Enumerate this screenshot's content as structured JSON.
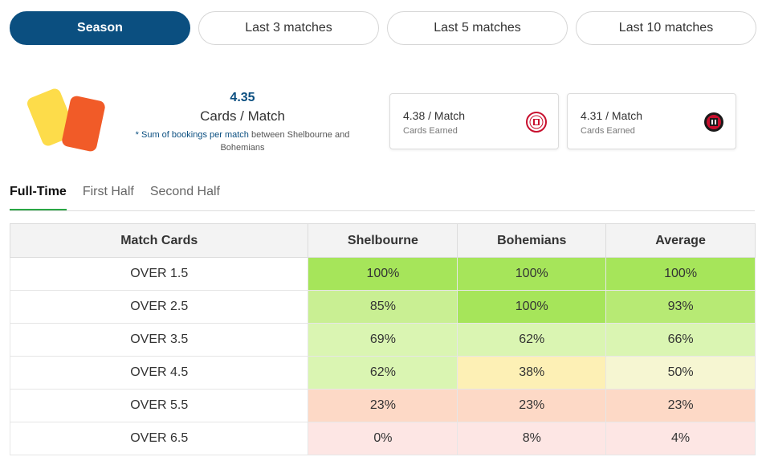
{
  "period_tabs": [
    "Season",
    "Last 3 matches",
    "Last 5 matches",
    "Last 10 matches"
  ],
  "summary": {
    "value": "4.35",
    "label": "Cards / Match",
    "note_highlight": "* Sum of bookings per match",
    "note_rest": "between Shelbourne and Bohemians"
  },
  "teams": [
    {
      "rate": "4.38 / Match",
      "sub": "Cards Earned",
      "crest_icon": "shelbourne-crest-icon",
      "crest_color": "#c8102e"
    },
    {
      "rate": "4.31 / Match",
      "sub": "Cards Earned",
      "crest_icon": "bohemians-crest-icon",
      "crest_color": "#1a1a1a"
    }
  ],
  "half_tabs": [
    "Full-Time",
    "First Half",
    "Second Half"
  ],
  "table": {
    "headers": [
      "Match Cards",
      "Shelbourne",
      "Bohemians",
      "Average"
    ],
    "rows": [
      {
        "label": "OVER 1.5",
        "values": [
          "100%",
          "100%",
          "100%"
        ]
      },
      {
        "label": "OVER 2.5",
        "values": [
          "85%",
          "100%",
          "93%"
        ]
      },
      {
        "label": "OVER 3.5",
        "values": [
          "69%",
          "62%",
          "66%"
        ]
      },
      {
        "label": "OVER 4.5",
        "values": [
          "62%",
          "38%",
          "50%"
        ]
      },
      {
        "label": "OVER 5.5",
        "values": [
          "23%",
          "23%",
          "23%"
        ]
      },
      {
        "label": "OVER 6.5",
        "values": [
          "0%",
          "8%",
          "4%"
        ]
      }
    ]
  },
  "colors": {
    "accent": "#0b4f80",
    "card_yellow": "#fddc4a",
    "card_orange": "#f15b28",
    "tab_underline": "#2aa745",
    "cell_green_strong": "#a6e55a",
    "cell_green_mid": "#c9ef93",
    "cell_green_light": "#daf5b2",
    "cell_yellow": "#fdf0b5",
    "cell_yellow_light": "#f6f6d2",
    "cell_orange_light": "#fdd9c6",
    "cell_red_light": "#fde6e4"
  }
}
